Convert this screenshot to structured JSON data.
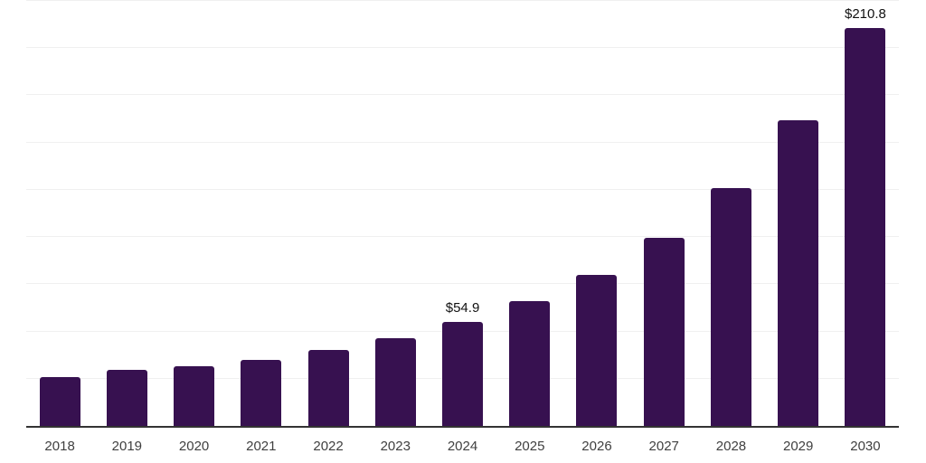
{
  "chart_data": {
    "type": "bar",
    "categories": [
      "2018",
      "2019",
      "2020",
      "2021",
      "2022",
      "2023",
      "2024",
      "2025",
      "2026",
      "2027",
      "2028",
      "2029",
      "2030"
    ],
    "values": [
      26.0,
      29.8,
      31.7,
      35.2,
      40.3,
      46.4,
      54.9,
      66.2,
      80.0,
      99.4,
      125.9,
      161.8,
      210.8
    ],
    "data_labels": [
      null,
      null,
      null,
      null,
      null,
      null,
      "$54.9",
      null,
      null,
      null,
      null,
      null,
      "$210.8"
    ],
    "title": "",
    "xlabel": "",
    "ylabel": "",
    "ylim": [
      0,
      225
    ],
    "gridline_step": 25,
    "grid": true,
    "legend": false,
    "y_axis_tick_labels_visible": false,
    "colors": {
      "bar": "#371150",
      "axis_line": "#333333",
      "gridline": "#f0f0f0",
      "tick_label": "#404040",
      "value_label": "#111111",
      "background": "#ffffff"
    }
  }
}
